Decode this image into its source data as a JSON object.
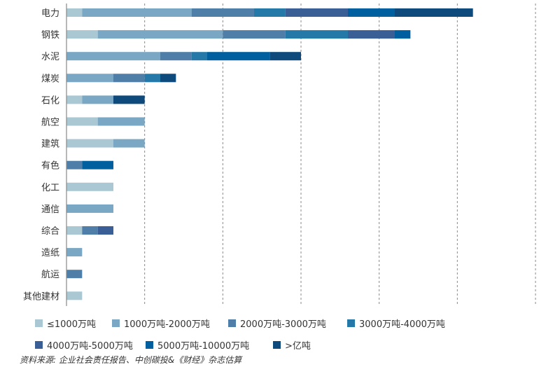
{
  "chart_data": {
    "type": "bar",
    "orientation": "horizontal",
    "stacked": true,
    "categories": [
      "电力",
      "钢铁",
      "水泥",
      "煤炭",
      "石化",
      "航空",
      "建筑",
      "有色",
      "化工",
      "通信",
      "综合",
      "造纸",
      "航运",
      "其他建材"
    ],
    "series": [
      {
        "name": "≤1000万吨",
        "color": "#a9c8d4",
        "values": [
          1,
          2,
          0,
          0,
          1,
          2,
          3,
          0,
          3,
          0,
          1,
          0,
          0,
          1
        ]
      },
      {
        "name": "1000万吨-2000万吨",
        "color": "#7aa7c3",
        "values": [
          7,
          8,
          6,
          3,
          2,
          3,
          2,
          0,
          0,
          3,
          0,
          1,
          0,
          0
        ]
      },
      {
        "name": "2000万吨-3000万吨",
        "color": "#4f7ea8",
        "values": [
          4,
          4,
          2,
          2,
          0,
          0,
          0,
          1,
          0,
          0,
          1,
          0,
          1,
          0
        ]
      },
      {
        "name": "3000万吨-4000万吨",
        "color": "#2579a8",
        "values": [
          2,
          4,
          1,
          1,
          0,
          0,
          0,
          0,
          0,
          0,
          0,
          0,
          0,
          0
        ]
      },
      {
        "name": "4000万吨-5000万吨",
        "color": "#3a5f96",
        "values": [
          4,
          3,
          0,
          0,
          0,
          0,
          0,
          0,
          0,
          0,
          1,
          0,
          0,
          0
        ]
      },
      {
        "name": "5000万吨-10000万吨",
        "color": "#005f9e",
        "values": [
          3,
          1,
          4,
          0,
          0,
          0,
          0,
          2,
          0,
          0,
          0,
          0,
          0,
          0
        ]
      },
      {
        "name": ">亿吨",
        "color": "#0f4a7c",
        "values": [
          5,
          0,
          2,
          1,
          2,
          0,
          0,
          0,
          0,
          0,
          0,
          0,
          0,
          0
        ]
      }
    ],
    "xlim": [
      0,
      30
    ],
    "grid_step": 5,
    "grid": "vertical dashed",
    "legend": "bottom",
    "source": "资料来源: 企业社会责任报告、中创碳投&《财经》杂志估算"
  }
}
